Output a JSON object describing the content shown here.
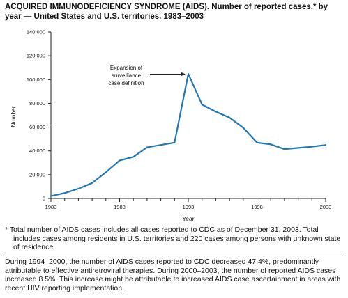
{
  "title": "ACQUIRED IMMUNODEFICIENCY SYNDROME (AIDS). Number of reported cases,* by year — United States and U.S. territories, 1983–2003",
  "colors": {
    "series": "#1f78b4",
    "axis": "#222222",
    "text": "#111111"
  },
  "chart_data": {
    "type": "line",
    "xlabel": "Year",
    "ylabel": "Number",
    "xlim": [
      1983,
      2003
    ],
    "ylim": [
      0,
      140000
    ],
    "x_ticks": [
      1983,
      1988,
      1993,
      1998,
      2003
    ],
    "x_tick_labels": [
      "1983",
      "1988",
      "1993",
      "1998",
      "2003"
    ],
    "y_ticks": [
      0,
      20000,
      40000,
      60000,
      80000,
      100000,
      120000,
      140000
    ],
    "y_tick_labels": [
      "0",
      "20,000",
      "40,000",
      "60,000",
      "80,000",
      "100,000",
      "120,000",
      "140,000"
    ],
    "grid": false,
    "series": [
      {
        "x": [
          1983,
          1984,
          1985,
          1986,
          1987,
          1988,
          1989,
          1990,
          1991,
          1992,
          1993,
          1994,
          1995,
          1996,
          1997,
          1998,
          1999,
          2000,
          2001,
          2002,
          2003
        ],
        "values": [
          2000,
          4500,
          8200,
          13000,
          22000,
          32000,
          35000,
          43000,
          45000,
          47000,
          104800,
          79000,
          73000,
          68000,
          59500,
          47000,
          45500,
          41500,
          42500,
          43500,
          45000
        ]
      }
    ],
    "annotations": [
      {
        "text": "Expansion of surveillance case definition",
        "lines": [
          "Expansion of",
          "surveillance",
          "case definition"
        ],
        "x": 1993,
        "y": 104800
      }
    ]
  },
  "footnote": "* Total number of AIDS cases includes all cases reported to CDC as of December 31, 2003. Total includes cases among residents in U.S. territories and 220 cases among persons with unknown state of residence.",
  "narrative": "During 1994–2000, the number of AIDS cases reported to CDC decreased 47.4%, predominantly attributable to effective antiretroviral therapies. During 2000–2003, the number of reported AIDS cases increased 8.5%. This increase might be attributable to increased AIDS case ascertainment in areas with recent HIV reporting implementation."
}
